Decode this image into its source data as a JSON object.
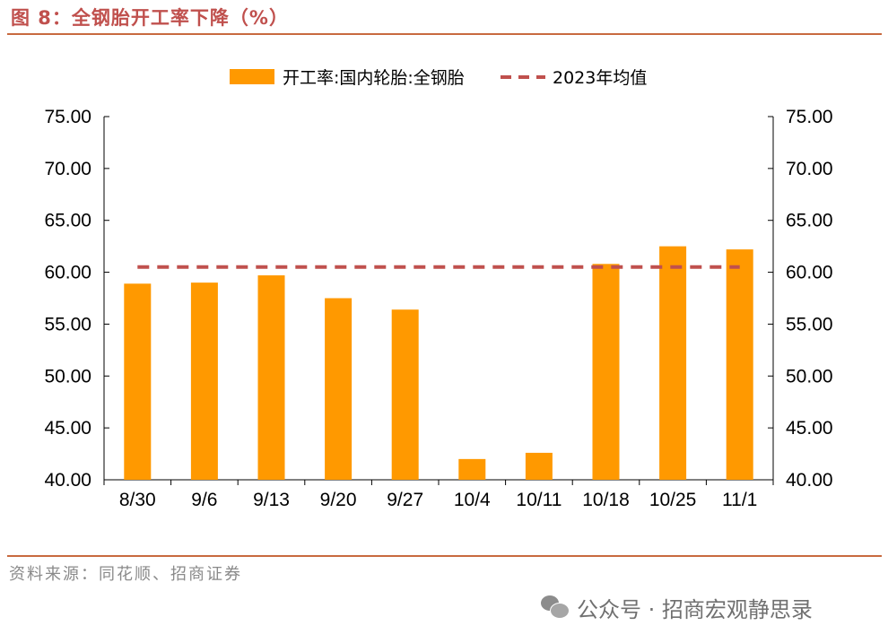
{
  "figure": {
    "title": "图 8：全钢胎开工率下降（%）",
    "source": "资料来源：同花顺、招商证券",
    "watermark": "公众号 · 招商宏观静思录"
  },
  "colors": {
    "bar": "#ff9900",
    "mean_line": "#c0504d",
    "rule": "#c86a3f",
    "title": "#c0504d"
  },
  "chart_data": {
    "type": "bar",
    "categories": [
      "8/30",
      "9/6",
      "9/13",
      "9/20",
      "9/27",
      "10/4",
      "10/11",
      "10/18",
      "10/25",
      "11/1"
    ],
    "series": [
      {
        "name": "开工率:国内轮胎:全钢胎",
        "type": "bar",
        "values": [
          58.9,
          59.0,
          59.7,
          57.5,
          56.4,
          42.0,
          42.6,
          60.8,
          62.5,
          62.2
        ]
      },
      {
        "name": "2023年均值",
        "type": "line",
        "style": "dashed",
        "values": [
          60.5,
          60.5,
          60.5,
          60.5,
          60.5,
          60.5,
          60.5,
          60.5,
          60.5,
          60.5
        ]
      }
    ],
    "ylim": [
      40,
      75
    ],
    "yticks": [
      "40.00",
      "45.00",
      "50.00",
      "55.00",
      "60.00",
      "65.00",
      "70.00",
      "75.00"
    ],
    "yticks_right": [
      "40.00",
      "45.00",
      "50.00",
      "55.00",
      "60.00",
      "65.00",
      "70.00",
      "75.00"
    ],
    "legend_position": "top-center",
    "grid": false
  }
}
